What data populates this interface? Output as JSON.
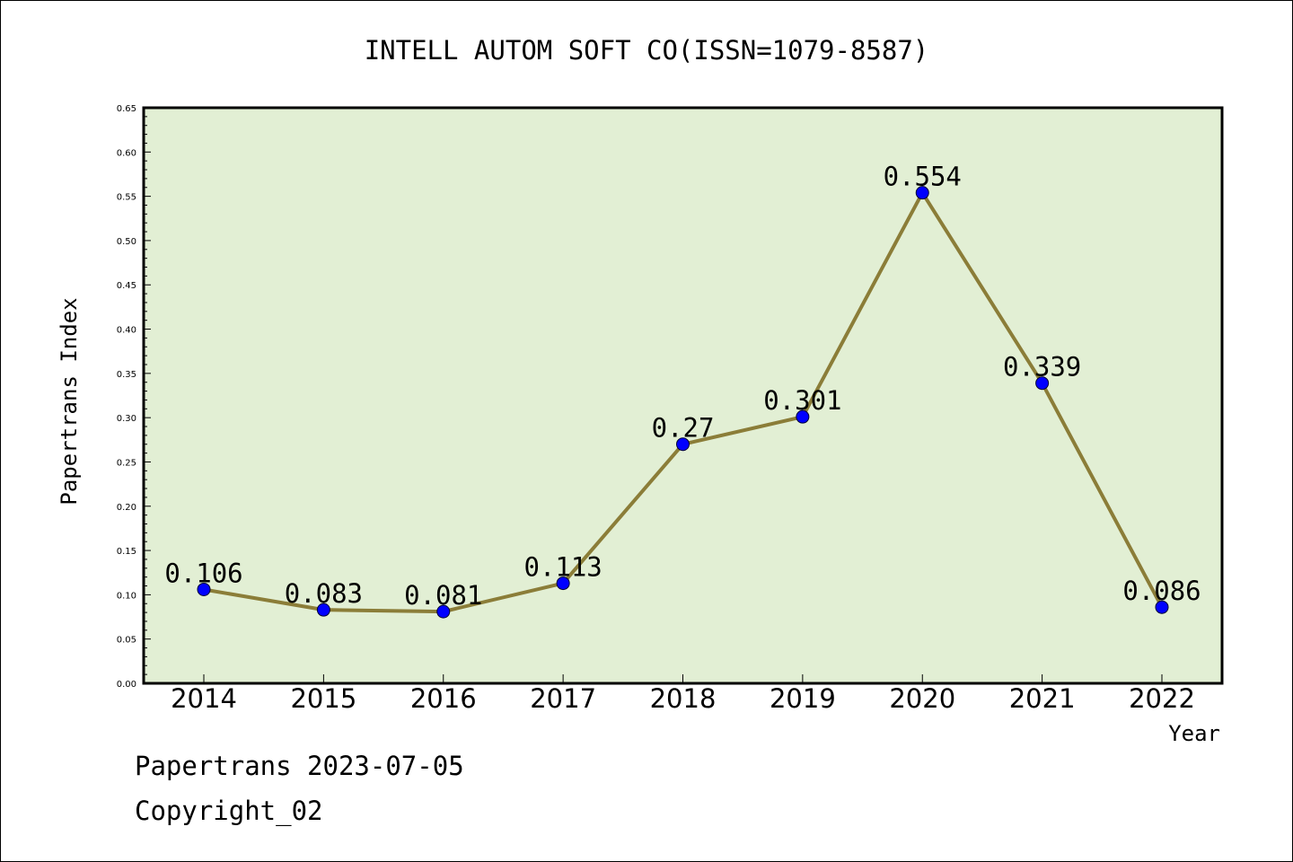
{
  "chart_data": {
    "type": "line",
    "title": "INTELL AUTOM SOFT CO(ISSN=1079-8587)",
    "xlabel": "Year",
    "ylabel": "Papertrans Index",
    "categories": [
      "2014",
      "2015",
      "2016",
      "2017",
      "2018",
      "2019",
      "2020",
      "2021",
      "2022"
    ],
    "series": [
      {
        "values": [
          0.106,
          0.083,
          0.081,
          0.113,
          0.27,
          0.301,
          0.554,
          0.339,
          0.086
        ],
        "labels": [
          "0.106",
          "0.083",
          "0.081",
          "0.113",
          "0.27",
          "0.301",
          "0.554",
          "0.339",
          "0.086"
        ]
      }
    ],
    "ylim": [
      0,
      0.65
    ],
    "yticks": [
      "0.00",
      "0.05",
      "0.10",
      "0.15",
      "0.20",
      "0.25",
      "0.30",
      "0.35",
      "0.40",
      "0.45",
      "0.50",
      "0.55",
      "0.60",
      "0.65"
    ],
    "grid": false,
    "colors": {
      "plot_background": "#e2efd4",
      "line": "#8b7d38",
      "marker": "#0000ff"
    }
  },
  "footer": {
    "line1": "Papertrans 2023-07-05",
    "line2": "Copyright_02"
  }
}
